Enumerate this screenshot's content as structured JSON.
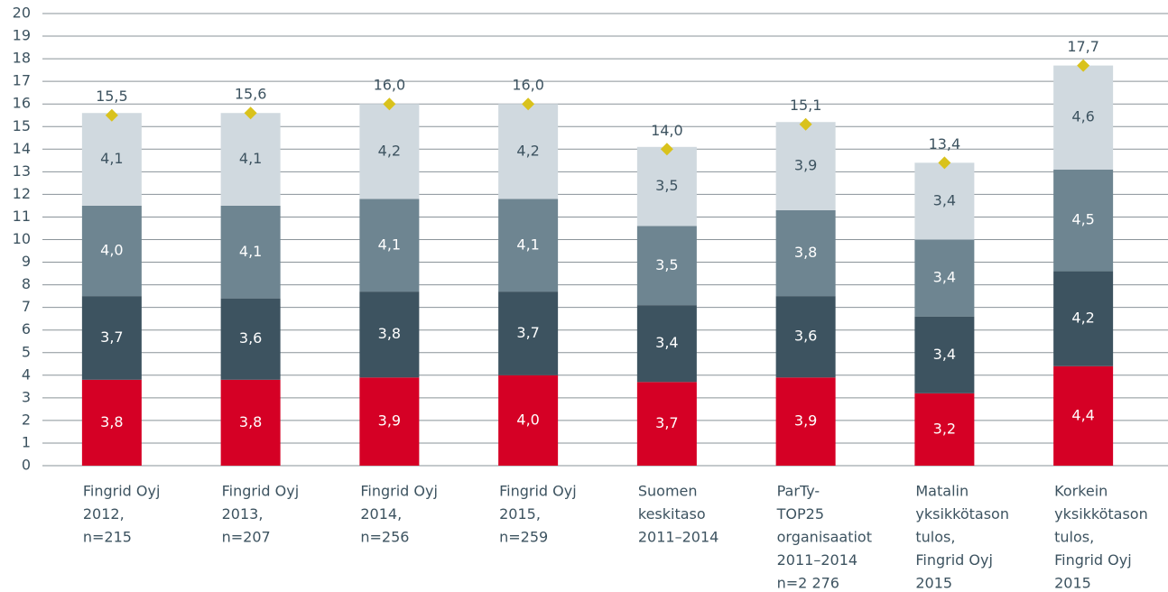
{
  "chart_data": {
    "type": "stacked_bar",
    "categories": [
      [
        "Fingrid Oyj",
        "2012,",
        "n=215"
      ],
      [
        "Fingrid Oyj",
        "2013,",
        "n=207"
      ],
      [
        "Fingrid Oyj",
        "2014,",
        "n=256"
      ],
      [
        "Fingrid Oyj",
        "2015,",
        "n=259"
      ],
      [
        "Suomen",
        "keskitaso",
        "2011–2014"
      ],
      [
        "ParTy-",
        "TOP25",
        "organisaatiot",
        "2011–2014",
        "n=2 276"
      ],
      [
        "Matalin",
        "yksikkötason",
        "tulos,",
        "Fingrid Oyj",
        "2015"
      ],
      [
        "Korkein",
        "yksikkötason",
        "tulos,",
        "Fingrid Oyj",
        "2015"
      ]
    ],
    "series": [
      {
        "color": "#d50025",
        "label_color": "#ffffff",
        "values": [
          3.8,
          3.8,
          3.9,
          4.0,
          3.7,
          3.9,
          3.2,
          4.4
        ],
        "value_labels": [
          "3,8",
          "3,8",
          "3,9",
          "4,0",
          "3,7",
          "3,9",
          "3,2",
          "4,4"
        ]
      },
      {
        "color": "#3d5360",
        "label_color": "#ffffff",
        "values": [
          3.7,
          3.6,
          3.8,
          3.7,
          3.4,
          3.6,
          3.4,
          4.2
        ],
        "value_labels": [
          "3,7",
          "3,6",
          "3,8",
          "3,7",
          "3,4",
          "3,6",
          "3,4",
          "4,2"
        ]
      },
      {
        "color": "#6e8591",
        "label_color": "#ffffff",
        "values": [
          4.0,
          4.1,
          4.1,
          4.1,
          3.5,
          3.8,
          3.4,
          4.5
        ],
        "value_labels": [
          "4,0",
          "4,1",
          "4,1",
          "4,1",
          "3,5",
          "3,8",
          "3,4",
          "4,5"
        ]
      },
      {
        "color": "#d0d9df",
        "label_color": "#3d5360",
        "values": [
          4.1,
          4.1,
          4.2,
          4.2,
          3.5,
          3.9,
          3.4,
          4.6
        ],
        "value_labels": [
          "4,1",
          "4,1",
          "4,2",
          "4,2",
          "3,5",
          "3,9",
          "3,4",
          "4,6"
        ]
      }
    ],
    "totals": {
      "color": "#d9c21c",
      "values": [
        15.5,
        15.6,
        16.0,
        16.0,
        14.0,
        15.1,
        13.4,
        17.7
      ],
      "value_labels": [
        "15,5",
        "15,6",
        "16,0",
        "16,0",
        "14,0",
        "15,1",
        "13,4",
        "17,7"
      ]
    },
    "ylim": [
      0,
      20
    ],
    "yticks": [
      0,
      1,
      2,
      3,
      4,
      5,
      6,
      7,
      8,
      9,
      10,
      11,
      12,
      13,
      14,
      15,
      16,
      17,
      18,
      19,
      20
    ],
    "grid": true
  }
}
